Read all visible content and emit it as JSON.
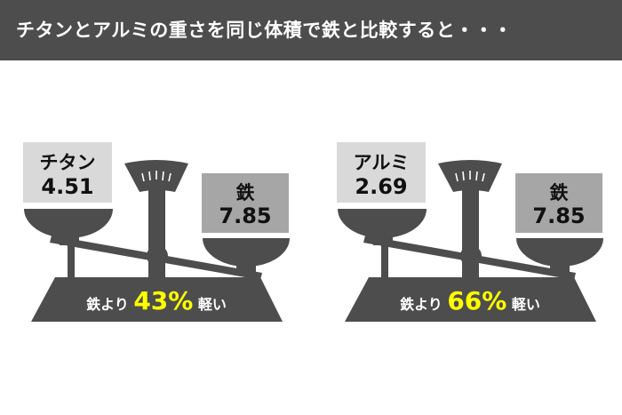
{
  "title": "チタンとアルミの重さを同じ体積で鉄と比較すると・・・",
  "colors": {
    "header": "#4d4d4d",
    "scale": "#4d4d4d",
    "highlight": "#ffff00",
    "light_box": "#d9d9d9",
    "heavy_box": "#a6a6a6"
  },
  "comparisons": [
    {
      "light": {
        "name": "チタン",
        "value": "4.51"
      },
      "heavy": {
        "name": "鉄",
        "value": "7.85"
      },
      "result": {
        "prefix": "鉄より",
        "percent": "43%",
        "suffix": "軽い"
      }
    },
    {
      "light": {
        "name": "アルミ",
        "value": "2.69"
      },
      "heavy": {
        "name": "鉄",
        "value": "7.85"
      },
      "result": {
        "prefix": "鉄より",
        "percent": "66%",
        "suffix": "軽い"
      }
    }
  ]
}
